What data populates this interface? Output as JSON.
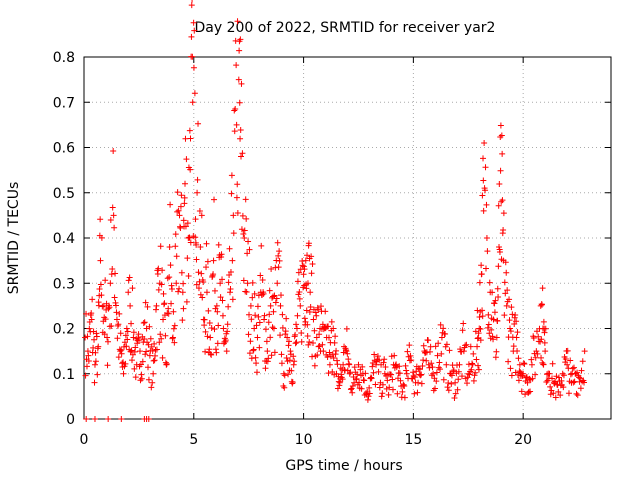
{
  "chart_data": {
    "type": "scatter",
    "title": "Day 200 of 2022, SRMTID for receiver yar2",
    "xlabel": "GPS time / hours",
    "ylabel": "SRMTID / TECUs",
    "xlim": [
      0,
      24
    ],
    "ylim": [
      0,
      0.8
    ],
    "xticks": [
      0,
      5,
      10,
      15,
      20
    ],
    "yticks": [
      0,
      0.1,
      0.2,
      0.3,
      0.4,
      0.5,
      0.6,
      0.7,
      0.8
    ],
    "xtick_labels": [
      "0",
      "5",
      "10",
      "15",
      "20"
    ],
    "ytick_labels": [
      "0",
      "0.1",
      "0.2",
      "0.3",
      "0.4",
      "0.5",
      "0.6",
      "0.7",
      "0.8"
    ],
    "grid": true,
    "marker": "+",
    "series": [
      {
        "name": "SRMTID",
        "color": "#ff0000",
        "x": [
          0.05,
          0.2,
          0.35,
          0.5,
          0.65,
          0.75,
          0.9,
          1.05,
          1.2,
          1.35,
          1.5,
          1.65,
          1.8,
          1.95,
          2.1,
          2.25,
          2.4,
          2.55,
          2.7,
          2.85,
          3.0,
          3.15,
          3.3,
          3.45,
          3.6,
          3.75,
          3.9,
          4.05,
          4.2,
          4.35,
          4.5,
          4.6,
          4.75,
          4.85,
          4.95,
          5.05,
          5.15,
          5.3,
          5.45,
          5.6,
          5.75,
          5.9,
          6.05,
          6.2,
          6.35,
          6.5,
          6.65,
          6.8,
          6.95,
          7.05,
          7.15,
          7.3,
          7.45,
          7.6,
          7.75,
          7.9,
          8.05,
          8.2,
          8.35,
          8.5,
          8.65,
          8.8,
          8.95,
          9.1,
          9.25,
          9.4,
          9.55,
          9.7,
          9.85,
          10.0,
          10.1,
          10.2,
          10.3,
          10.45,
          10.6,
          10.75,
          10.9,
          11.05,
          11.2,
          11.35,
          11.5,
          11.65,
          11.8,
          11.95,
          12.1,
          12.3,
          12.5,
          12.7,
          12.9,
          13.1,
          13.3,
          13.5,
          13.7,
          13.9,
          14.1,
          14.3,
          14.5,
          14.7,
          14.9,
          15.1,
          15.3,
          15.5,
          15.7,
          15.9,
          16.1,
          16.3,
          16.5,
          16.7,
          16.9,
          17.1,
          17.3,
          17.5,
          17.7,
          17.9,
          18.0,
          18.1,
          18.2,
          18.35,
          18.5,
          18.65,
          18.8,
          18.9,
          19.0,
          19.1,
          19.25,
          19.4,
          19.55,
          19.7,
          19.85,
          20.0,
          20.2,
          20.4,
          20.6,
          20.8,
          20.9,
          21.0,
          21.2,
          21.4,
          21.6,
          21.8,
          22.0,
          22.2,
          22.4,
          22.6,
          22.8
        ],
        "values": [
          0.18,
          0.14,
          0.22,
          0.12,
          0.16,
          0.35,
          0.25,
          0.18,
          0.3,
          0.45,
          0.22,
          0.15,
          0.1,
          0.2,
          0.25,
          0.18,
          0.12,
          0.15,
          0.17,
          0.2,
          0.14,
          0.1,
          0.25,
          0.3,
          0.22,
          0.12,
          0.38,
          0.18,
          0.3,
          0.45,
          0.28,
          0.52,
          0.4,
          0.62,
          0.7,
          0.72,
          0.5,
          0.38,
          0.22,
          0.28,
          0.18,
          0.35,
          0.25,
          0.3,
          0.2,
          0.15,
          0.28,
          0.45,
          0.65,
          0.75,
          0.58,
          0.4,
          0.3,
          0.25,
          0.2,
          0.18,
          0.28,
          0.22,
          0.15,
          0.25,
          0.2,
          0.3,
          0.25,
          0.1,
          0.18,
          0.15,
          0.12,
          0.2,
          0.25,
          0.32,
          0.35,
          0.3,
          0.28,
          0.22,
          0.18,
          0.2,
          0.15,
          0.18,
          0.12,
          0.2,
          0.1,
          0.08,
          0.12,
          0.15,
          0.1,
          0.08,
          0.12,
          0.1,
          0.06,
          0.09,
          0.12,
          0.08,
          0.1,
          0.07,
          0.12,
          0.09,
          0.06,
          0.1,
          0.13,
          0.08,
          0.11,
          0.15,
          0.12,
          0.1,
          0.14,
          0.18,
          0.12,
          0.1,
          0.08,
          0.12,
          0.15,
          0.1,
          0.12,
          0.16,
          0.2,
          0.32,
          0.46,
          0.4,
          0.28,
          0.22,
          0.18,
          0.38,
          0.48,
          0.35,
          0.25,
          0.2,
          0.15,
          0.18,
          0.12,
          0.1,
          0.08,
          0.12,
          0.15,
          0.25,
          0.2,
          0.15,
          0.1,
          0.08,
          0.06,
          0.1,
          0.12,
          0.08,
          0.1,
          0.09,
          0.15
        ]
      }
    ],
    "zero_points_x": [
      0.1,
      0.5,
      1.1,
      1.7,
      2.75,
      2.85,
      2.95
    ]
  }
}
